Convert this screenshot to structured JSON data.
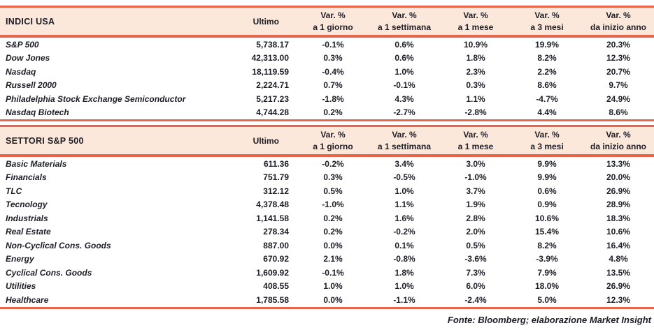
{
  "colors": {
    "accent": "#e8644b",
    "band_bg": "#fce8da",
    "text": "#1d1d27"
  },
  "columns": {
    "ultimo": "Ultimo",
    "var_label": "Var. %",
    "periods": [
      "a 1 giorno",
      "a 1 settimana",
      "a 1 mese",
      "a 3 mesi",
      "da inizio anno"
    ]
  },
  "sections": [
    {
      "title": "INDICI USA",
      "rows": [
        {
          "name": "S&P 500",
          "ultimo": "5,738.17",
          "vars": [
            "-0.1%",
            "0.6%",
            "10.9%",
            "19.9%",
            "20.3%"
          ]
        },
        {
          "name": "Dow Jones",
          "ultimo": "42,313.00",
          "vars": [
            "0.3%",
            "0.6%",
            "1.8%",
            "8.2%",
            "12.3%"
          ]
        },
        {
          "name": "Nasdaq",
          "ultimo": "18,119.59",
          "vars": [
            "-0.4%",
            "1.0%",
            "2.3%",
            "2.2%",
            "20.7%"
          ]
        },
        {
          "name": "Russell 2000",
          "ultimo": "2,224.71",
          "vars": [
            "0.7%",
            "-0.1%",
            "0.3%",
            "8.6%",
            "9.7%"
          ]
        },
        {
          "name": "Philadelphia Stock Exchange Semiconductor",
          "ultimo": "5,217.23",
          "vars": [
            "-1.8%",
            "4.3%",
            "1.1%",
            "-4.7%",
            "24.9%"
          ]
        },
        {
          "name": "Nasdaq Biotech",
          "ultimo": "4,744.28",
          "vars": [
            "0.2%",
            "-2.7%",
            "-2.8%",
            "4.4%",
            "8.6%"
          ]
        }
      ]
    },
    {
      "title": "SETTORI S&P 500",
      "rows": [
        {
          "name": "Basic Materials",
          "ultimo": "611.36",
          "vars": [
            "-0.2%",
            "3.4%",
            "3.0%",
            "9.9%",
            "13.3%"
          ]
        },
        {
          "name": "Financials",
          "ultimo": "751.79",
          "vars": [
            "0.3%",
            "-0.5%",
            "-1.0%",
            "9.9%",
            "20.0%"
          ]
        },
        {
          "name": "TLC",
          "ultimo": "312.12",
          "vars": [
            "0.5%",
            "1.0%",
            "3.7%",
            "0.6%",
            "26.9%"
          ]
        },
        {
          "name": "Tecnology",
          "ultimo": "4,378.48",
          "vars": [
            "-1.0%",
            "1.1%",
            "1.9%",
            "0.9%",
            "28.9%"
          ]
        },
        {
          "name": "Industrials",
          "ultimo": "1,141.58",
          "vars": [
            "0.2%",
            "1.6%",
            "2.8%",
            "10.6%",
            "18.3%"
          ]
        },
        {
          "name": "Real Estate",
          "ultimo": "278.34",
          "vars": [
            "0.2%",
            "-0.2%",
            "2.0%",
            "15.4%",
            "10.6%"
          ]
        },
        {
          "name": "Non-Cyclical Cons. Goods",
          "ultimo": "887.00",
          "vars": [
            "0.0%",
            "0.1%",
            "0.5%",
            "8.2%",
            "16.4%"
          ]
        },
        {
          "name": "Energy",
          "ultimo": "670.92",
          "vars": [
            "2.1%",
            "-0.8%",
            "-3.6%",
            "-3.9%",
            "4.8%"
          ]
        },
        {
          "name": "Cyclical Cons. Goods",
          "ultimo": "1,609.92",
          "vars": [
            "-0.1%",
            "1.8%",
            "7.3%",
            "7.9%",
            "13.5%"
          ]
        },
        {
          "name": "Utilities",
          "ultimo": "408.55",
          "vars": [
            "1.0%",
            "1.0%",
            "6.0%",
            "18.0%",
            "26.9%"
          ]
        },
        {
          "name": "Healthcare",
          "ultimo": "1,785.58",
          "vars": [
            "0.0%",
            "-1.1%",
            "-2.4%",
            "5.0%",
            "12.3%"
          ]
        }
      ]
    }
  ],
  "footer": "Fonte: Bloomberg; elaborazione Market Insight"
}
